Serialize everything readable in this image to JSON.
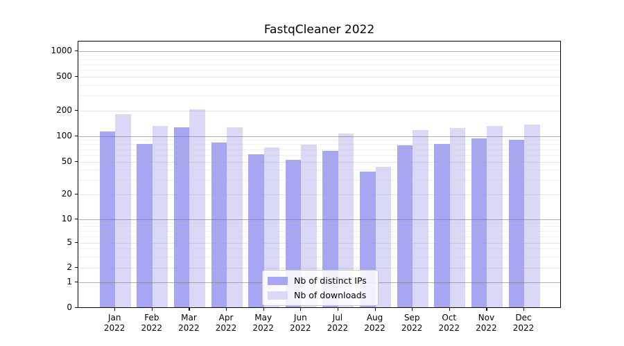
{
  "title": "FastqCleaner 2022",
  "chart_data": {
    "type": "bar",
    "title": "FastqCleaner 2022",
    "categories": [
      "Jan 2022",
      "Feb 2022",
      "Mar 2022",
      "Apr 2022",
      "May 2022",
      "Jun 2022",
      "Jul 2022",
      "Aug 2022",
      "Sep 2022",
      "Oct 2022",
      "Nov 2022",
      "Dec 2022"
    ],
    "series": [
      {
        "name": "Nb of distinct IPs",
        "color": "#a6a6f2",
        "values": [
          113,
          80,
          127,
          83,
          61,
          52,
          67,
          38,
          77,
          80,
          94,
          90
        ]
      },
      {
        "name": "Nb of downloads",
        "color": "#d9d9f7",
        "values": [
          179,
          130,
          206,
          127,
          74,
          79,
          106,
          43,
          118,
          123,
          132,
          135
        ]
      }
    ],
    "yscale": "pseudo-log",
    "yticks": {
      "values": [
        0,
        1,
        2,
        5,
        10,
        20,
        50,
        100,
        200,
        500,
        1000
      ],
      "labels": [
        "0",
        "1",
        "2",
        "5",
        "10",
        "20",
        "50",
        "100",
        "200",
        "500",
        "1000"
      ]
    },
    "ylim": [
      0,
      1000
    ],
    "xlabel": "",
    "ylabel": "",
    "grid": true,
    "legend_position": "inside-bottom-center"
  }
}
